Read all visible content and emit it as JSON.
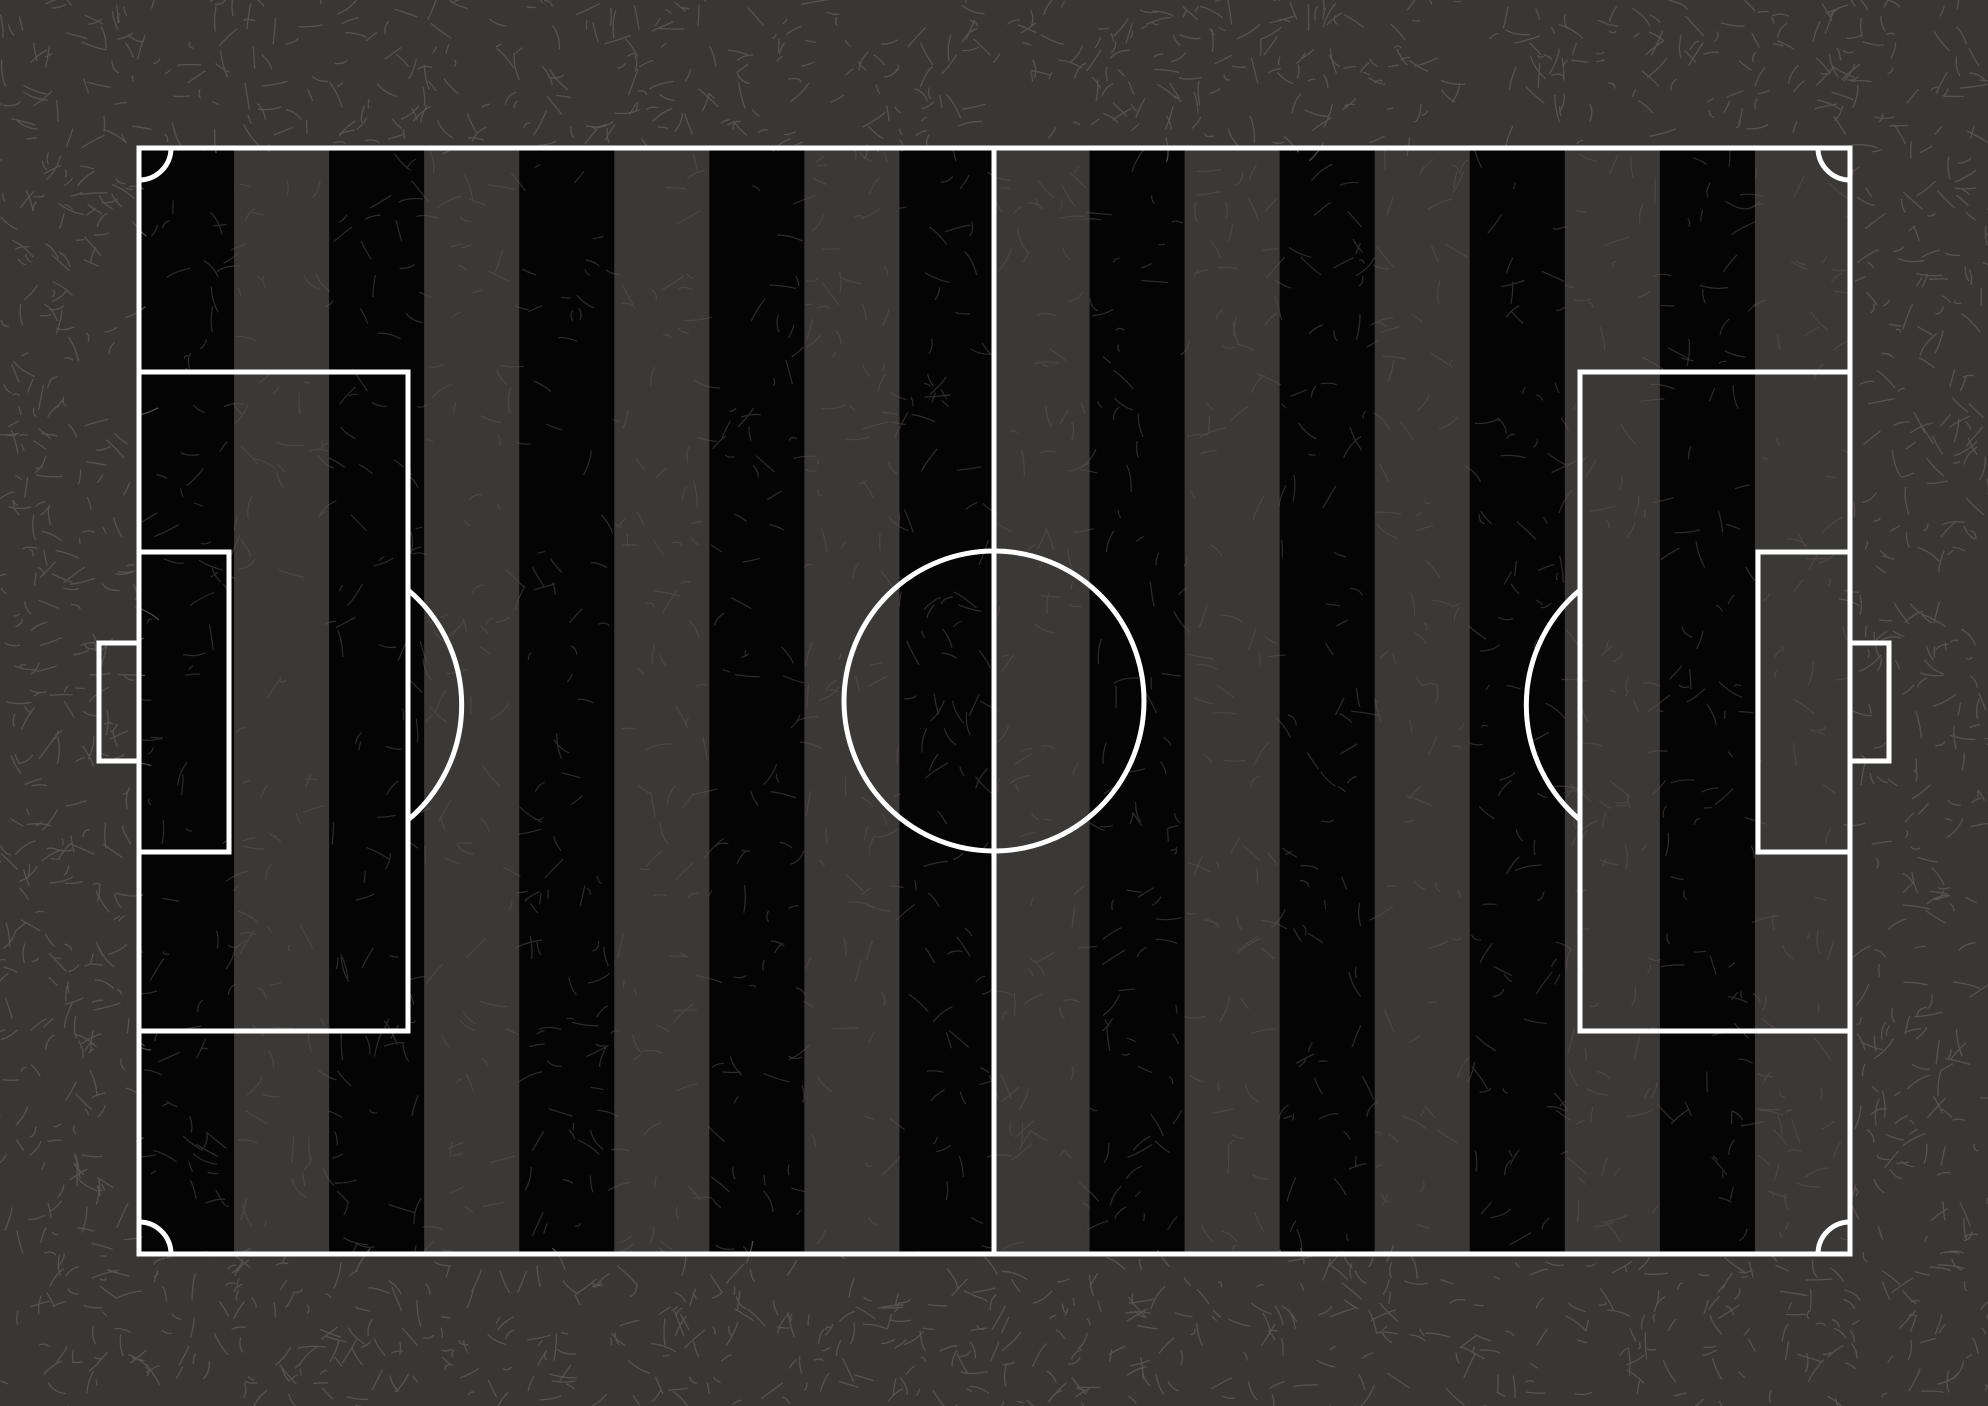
{
  "colors": {
    "surround": "#393736",
    "texture": "#5c5857",
    "stripe_light": "#3b3938",
    "stripe_dark": "#050404",
    "line": "#ffffff"
  },
  "pitch": {
    "stripe_count": 18,
    "first_stripe": "dark",
    "texture": "scratched-grass",
    "markings": [
      "touchline-top",
      "touchline-bottom",
      "goal-line-left",
      "goal-line-right",
      "halfway-line",
      "center-circle",
      "penalty-area-left",
      "penalty-area-right",
      "goal-area-left",
      "goal-area-right",
      "penalty-arc-left",
      "penalty-arc-right",
      "goal-left",
      "goal-right",
      "corner-arc-top-left",
      "corner-arc-top-right",
      "corner-arc-bottom-left",
      "corner-arc-bottom-right"
    ]
  }
}
